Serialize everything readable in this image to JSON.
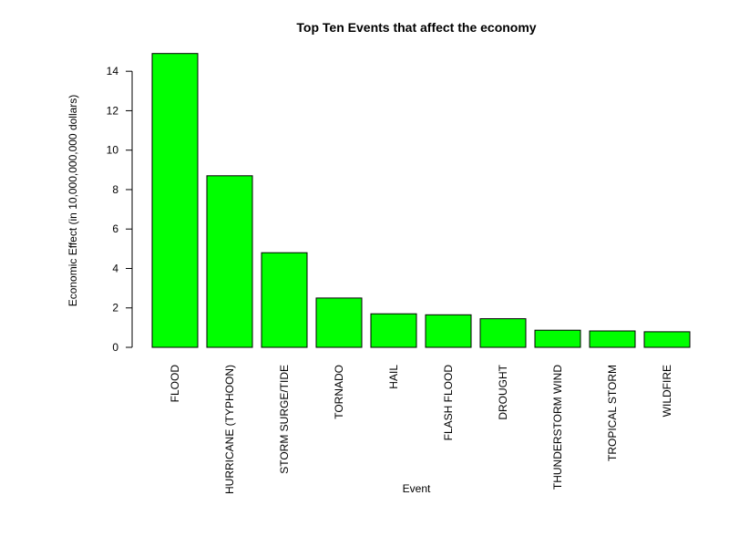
{
  "chart_data": {
    "type": "bar",
    "title": "Top Ten Events that affect the economy",
    "xlabel": "Event",
    "ylabel": "Economic Effect (in 10,000,000,000 dollars)",
    "categories": [
      "FLOOD",
      "HURRICANE (TYPHOON)",
      "STORM SURGE/TIDE",
      "TORNADO",
      "HAIL",
      "FLASH FLOOD",
      "DROUGHT",
      "THUNDERSTORM WIND",
      "TROPICAL STORM",
      "WILDFIRE"
    ],
    "values": [
      14.9,
      8.7,
      4.8,
      2.5,
      1.7,
      1.65,
      1.45,
      0.87,
      0.83,
      0.79
    ],
    "ylim": [
      0,
      15
    ],
    "yticks": [
      "0",
      "2",
      "4",
      "6",
      "8",
      "10",
      "12",
      "14"
    ],
    "bar_color": "#00ff00",
    "grid": false,
    "legend": "none"
  }
}
